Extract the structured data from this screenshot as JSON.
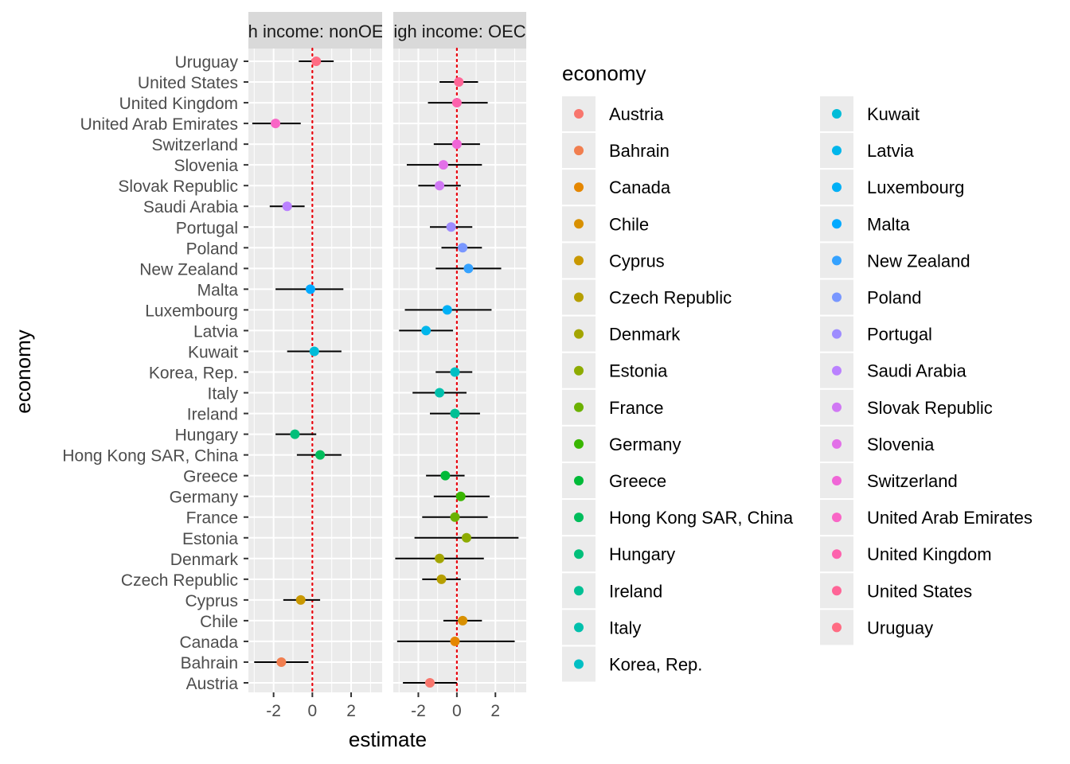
{
  "chart_data": {
    "type": "scatter",
    "subtype": "dot-whisker faceted",
    "xlabel": "estimate",
    "ylabel": "economy",
    "xlim": [
      -3.3,
      3.6
    ],
    "x_ticks": [
      -2,
      0,
      2
    ],
    "x_tick_labels": [
      "-2",
      "0",
      "2"
    ],
    "reference_line": {
      "x": 0,
      "color": "#e8000b",
      "style": "dotted"
    },
    "grid": true,
    "economies": [
      "Austria",
      "Bahrain",
      "Canada",
      "Chile",
      "Cyprus",
      "Czech Republic",
      "Denmark",
      "Estonia",
      "France",
      "Germany",
      "Greece",
      "Hong Kong SAR, China",
      "Hungary",
      "Ireland",
      "Italy",
      "Korea, Rep.",
      "Kuwait",
      "Latvia",
      "Luxembourg",
      "Malta",
      "New Zealand",
      "Poland",
      "Portugal",
      "Saudi Arabia",
      "Slovak Republic",
      "Slovenia",
      "Switzerland",
      "United Arab Emirates",
      "United Kingdom",
      "United States",
      "Uruguay"
    ],
    "colors": [
      "#F8766D",
      "#F17E4F",
      "#E58700",
      "#D89000",
      "#C99800",
      "#B69F00",
      "#A3A500",
      "#8DAB00",
      "#6BB100",
      "#39B600",
      "#00BA38",
      "#00BD5C",
      "#00BF7A",
      "#00C094",
      "#00C0AC",
      "#00BFC4",
      "#00BCD8",
      "#00B6EB",
      "#00B0F6",
      "#00A9FF",
      "#35A2FF",
      "#7997FF",
      "#9E8CFF",
      "#BA81FF",
      "#D078F4",
      "#E270E8",
      "#F066D7",
      "#F966C6",
      "#FD62AD",
      "#FF6597",
      "#FF6C83"
    ],
    "facets": [
      {
        "label": "High income: nonOECD",
        "points": [
          {
            "economy": "Uruguay",
            "estimate": 0.2,
            "lower": -0.7,
            "upper": 1.1
          },
          {
            "economy": "United Arab Emirates",
            "estimate": -1.9,
            "lower": -3.1,
            "upper": -0.6
          },
          {
            "economy": "Saudi Arabia",
            "estimate": -1.3,
            "lower": -2.2,
            "upper": -0.4
          },
          {
            "economy": "Malta",
            "estimate": -0.1,
            "lower": -1.9,
            "upper": 1.6
          },
          {
            "economy": "Kuwait",
            "estimate": 0.1,
            "lower": -1.3,
            "upper": 1.5
          },
          {
            "economy": "Hungary",
            "estimate": -0.9,
            "lower": -1.9,
            "upper": 0.2
          },
          {
            "economy": "Hong Kong SAR, China",
            "estimate": 0.4,
            "lower": -0.8,
            "upper": 1.5
          },
          {
            "economy": "Cyprus",
            "estimate": -0.6,
            "lower": -1.5,
            "upper": 0.4
          },
          {
            "economy": "Bahrain",
            "estimate": -1.6,
            "lower": -3.0,
            "upper": -0.2
          }
        ]
      },
      {
        "label": "High income: OECD",
        "points": [
          {
            "economy": "United States",
            "estimate": 0.1,
            "lower": -0.9,
            "upper": 1.1
          },
          {
            "economy": "United Kingdom",
            "estimate": 0.0,
            "lower": -1.5,
            "upper": 1.6
          },
          {
            "economy": "Switzerland",
            "estimate": 0.0,
            "lower": -1.2,
            "upper": 1.2
          },
          {
            "economy": "Slovenia",
            "estimate": -0.7,
            "lower": -2.6,
            "upper": 1.3
          },
          {
            "economy": "Slovak Republic",
            "estimate": -0.9,
            "lower": -2.0,
            "upper": 0.2
          },
          {
            "economy": "Portugal",
            "estimate": -0.3,
            "lower": -1.4,
            "upper": 0.8
          },
          {
            "economy": "Poland",
            "estimate": 0.3,
            "lower": -0.8,
            "upper": 1.3
          },
          {
            "economy": "New Zealand",
            "estimate": 0.6,
            "lower": -1.1,
            "upper": 2.3
          },
          {
            "economy": "Luxembourg",
            "estimate": -0.5,
            "lower": -2.7,
            "upper": 1.8
          },
          {
            "economy": "Latvia",
            "estimate": -1.6,
            "lower": -3.0,
            "upper": -0.2
          },
          {
            "economy": "Korea, Rep.",
            "estimate": -0.1,
            "lower": -1.1,
            "upper": 0.8
          },
          {
            "economy": "Italy",
            "estimate": -0.9,
            "lower": -2.3,
            "upper": 0.5
          },
          {
            "economy": "Ireland",
            "estimate": -0.1,
            "lower": -1.4,
            "upper": 1.2
          },
          {
            "economy": "Greece",
            "estimate": -0.6,
            "lower": -1.6,
            "upper": 0.4
          },
          {
            "economy": "Germany",
            "estimate": 0.2,
            "lower": -1.2,
            "upper": 1.7
          },
          {
            "economy": "France",
            "estimate": -0.1,
            "lower": -1.8,
            "upper": 1.6
          },
          {
            "economy": "Estonia",
            "estimate": 0.5,
            "lower": -2.2,
            "upper": 3.2
          },
          {
            "economy": "Denmark",
            "estimate": -0.9,
            "lower": -3.2,
            "upper": 1.4
          },
          {
            "economy": "Czech Republic",
            "estimate": -0.8,
            "lower": -1.8,
            "upper": 0.2
          },
          {
            "economy": "Chile",
            "estimate": 0.3,
            "lower": -0.7,
            "upper": 1.3
          },
          {
            "economy": "Canada",
            "estimate": -0.1,
            "lower": -3.1,
            "upper": 3.0
          },
          {
            "economy": "Austria",
            "estimate": -1.4,
            "lower": -2.8,
            "upper": 0.0
          }
        ]
      }
    ],
    "legend": {
      "title": "economy",
      "placement": "right",
      "columns": 2
    }
  }
}
